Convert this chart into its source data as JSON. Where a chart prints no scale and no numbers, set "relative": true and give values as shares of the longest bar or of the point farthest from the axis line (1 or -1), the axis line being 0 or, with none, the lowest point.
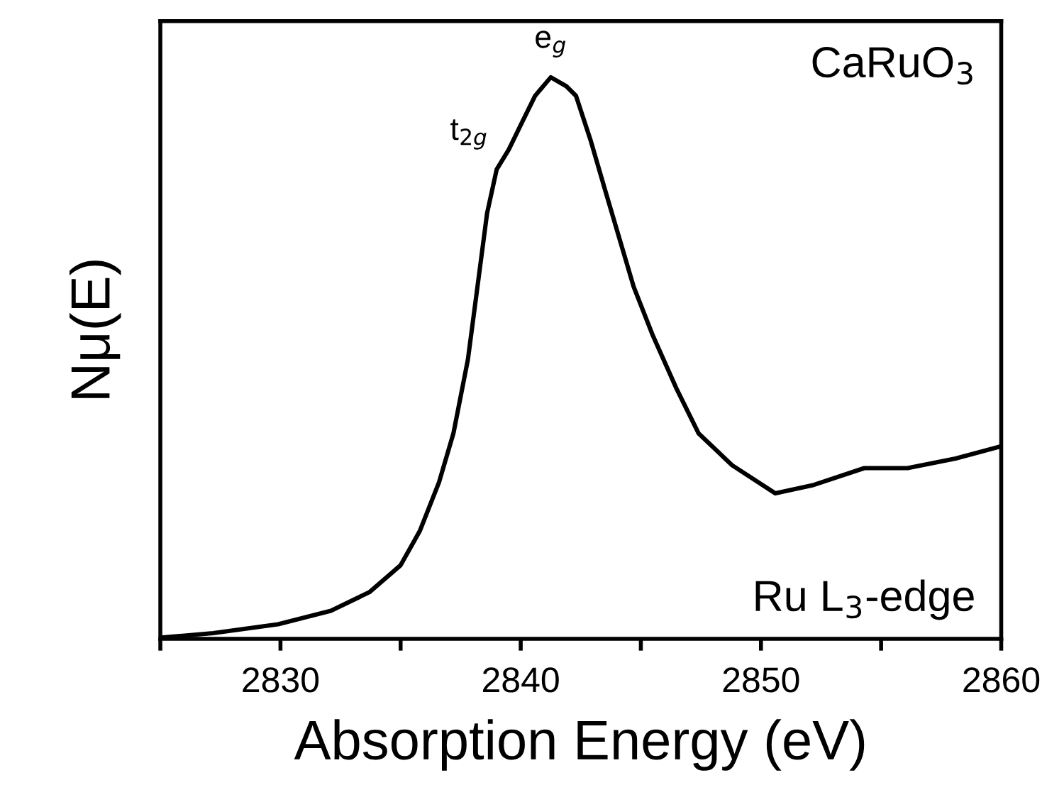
{
  "chart_data": {
    "type": "line",
    "relative": true,
    "xlabel": "Absorption Energy (eV)",
    "ylabel": "Nμ(E)",
    "xlim": [
      2825,
      2860
    ],
    "xticks": [
      {
        "value": 2825,
        "label": null
      },
      2830,
      {
        "value": 2835,
        "label": null
      },
      2840,
      {
        "value": 2845,
        "label": null
      },
      2850,
      {
        "value": 2855,
        "label": null
      },
      2860
    ],
    "tick_labels": "x",
    "grid": false,
    "legend": false,
    "marker": "none",
    "line_style": "solid",
    "series": [
      {
        "color": "#000000",
        "x": [
          2825,
          2827.2,
          2829.9,
          2832.1,
          2833.7,
          2835.0,
          2835.8,
          2836.6,
          2837.2,
          2837.8,
          2838.2,
          2838.6,
          2839.0,
          2839.5,
          2840.0,
          2840.6,
          2841.25,
          2841.9,
          2842.3,
          2842.9,
          2843.5,
          2844.1,
          2844.7,
          2845.5,
          2846.5,
          2847.4,
          2848.8,
          2850.6,
          2852.2,
          2854.3,
          2856.1,
          2858.1,
          2860
        ],
        "values": [
          0.002,
          0.01,
          0.026,
          0.05,
          0.083,
          0.131,
          0.192,
          0.279,
          0.366,
          0.497,
          0.627,
          0.758,
          0.836,
          0.871,
          0.915,
          0.967,
          1.0,
          0.984,
          0.967,
          0.889,
          0.801,
          0.714,
          0.627,
          0.54,
          0.444,
          0.366,
          0.309,
          0.259,
          0.274,
          0.304,
          0.304,
          0.321,
          0.343
        ]
      }
    ],
    "annotations": [
      {
        "text": "t$_{2g}$",
        "x": 2839.0,
        "y": 0.836
      },
      {
        "text": "e$_{g}$",
        "x": 2841.25,
        "y": 1.0
      },
      "CaRuO$_{3}$",
      "Ru L$_{3}$-edge"
    ]
  }
}
